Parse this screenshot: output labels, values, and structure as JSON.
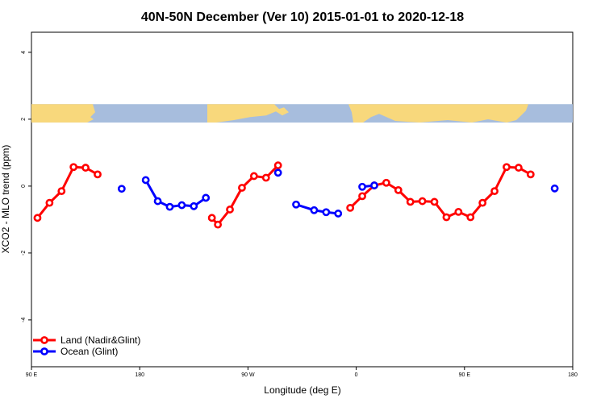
{
  "chart_data": {
    "type": "line",
    "title": "40N-50N December (Ver 10)   2015-01-01 to 2020-12-18",
    "xlabel": "Longitude (deg E)",
    "ylabel": "XCO2 - MLO trend (ppm)",
    "xlim": [
      90,
      540
    ],
    "ylim": [
      -5.4,
      4.6
    ],
    "x_ticks": [
      {
        "value": 90,
        "label": "90 E"
      },
      {
        "value": 180,
        "label": "180"
      },
      {
        "value": 270,
        "label": "90 W"
      },
      {
        "value": 360,
        "label": "0"
      },
      {
        "value": 450,
        "label": "90 E"
      },
      {
        "value": 540,
        "label": "180"
      }
    ],
    "y_ticks": [
      -4,
      -2,
      0,
      2,
      4
    ],
    "legend_position": "bottom-left",
    "land_strip": {
      "y_range": [
        1.9,
        2.45
      ],
      "ocean_color": "#a7bddd",
      "land_color": "#f8d87c"
    },
    "series": [
      {
        "name": "Land (Nadir&Glint)",
        "color": "#ff0000",
        "segments": [
          [
            [
              95,
              -0.95
            ],
            [
              105,
              -0.5
            ],
            [
              115,
              -0.15
            ],
            [
              125,
              0.57
            ],
            [
              135,
              0.55
            ],
            [
              145,
              0.35
            ]
          ],
          [
            [
              240,
              -0.95
            ],
            [
              245,
              -1.15
            ],
            [
              255,
              -0.7
            ],
            [
              265,
              -0.05
            ],
            [
              275,
              0.3
            ],
            [
              285,
              0.25
            ],
            [
              295,
              0.62
            ]
          ],
          [
            [
              355,
              -0.65
            ],
            [
              365,
              -0.3
            ],
            [
              375,
              0.02
            ],
            [
              385,
              0.1
            ],
            [
              395,
              -0.12
            ],
            [
              405,
              -0.47
            ],
            [
              415,
              -0.45
            ],
            [
              425,
              -0.47
            ],
            [
              435,
              -0.93
            ],
            [
              445,
              -0.77
            ],
            [
              455,
              -0.93
            ],
            [
              465,
              -0.5
            ],
            [
              475,
              -0.15
            ],
            [
              485,
              0.57
            ],
            [
              495,
              0.55
            ],
            [
              505,
              0.35
            ]
          ]
        ]
      },
      {
        "name": "Ocean (Glint)",
        "color": "#0000ff",
        "segments": [
          [
            [
              165,
              -0.08
            ]
          ],
          [
            [
              185,
              0.18
            ],
            [
              195,
              -0.45
            ],
            [
              205,
              -0.62
            ],
            [
              215,
              -0.57
            ],
            [
              225,
              -0.6
            ],
            [
              235,
              -0.35
            ]
          ],
          [
            [
              295,
              0.4
            ]
          ],
          [
            [
              310,
              -0.55
            ],
            [
              325,
              -0.72
            ],
            [
              335,
              -0.78
            ],
            [
              345,
              -0.82
            ]
          ],
          [
            [
              365,
              -0.02
            ],
            [
              375,
              0.02
            ]
          ],
          [
            [
              525,
              -0.07
            ]
          ]
        ]
      }
    ]
  }
}
